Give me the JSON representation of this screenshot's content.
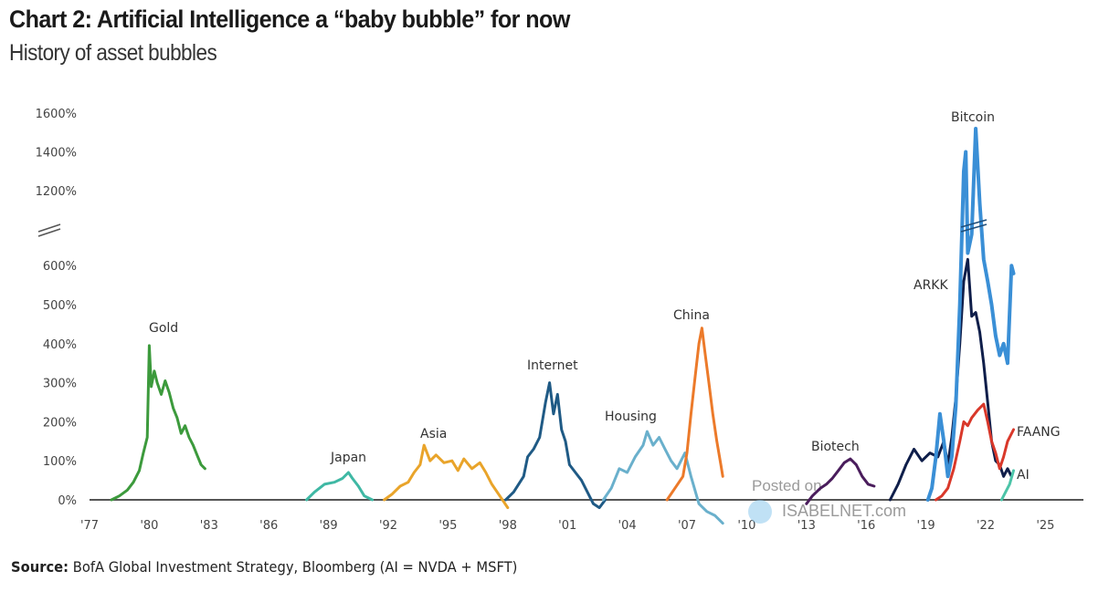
{
  "header": {
    "title": "Chart 2: Artificial Intelligence a “baby bubble” for now",
    "subtitle": "History of asset bubbles"
  },
  "footer": {
    "source_label": "Source:",
    "source_text": "BofA Global Investment Strategy, Bloomberg (AI = NVDA + MSFT)"
  },
  "watermark": {
    "line1": "Posted on",
    "line2": "ISABELNET.com"
  },
  "chart_data": {
    "type": "line",
    "title": "Chart 2: Artificial Intelligence a “baby bubble” for now",
    "subtitle": "History of asset bubbles",
    "xlabel": "",
    "ylabel": "",
    "xlim": [
      1977,
      2027
    ],
    "ylim": [
      0,
      1600
    ],
    "y_axis_break": [
      600,
      1200
    ],
    "grid": false,
    "legend": "none (series labelled inline)",
    "x_ticks": [
      "'77",
      "'80",
      "'83",
      "'86",
      "'89",
      "'92",
      "'95",
      "'98",
      "'01",
      "'04",
      "'07",
      "'10",
      "'13",
      "'16",
      "'19",
      "'22",
      "'25"
    ],
    "x_tick_values": [
      1977,
      1980,
      1983,
      1986,
      1989,
      1992,
      1995,
      1998,
      2001,
      2004,
      2007,
      2010,
      2013,
      2016,
      2019,
      2022,
      2025
    ],
    "y_ticks": [
      "0%",
      "100%",
      "200%",
      "300%",
      "400%",
      "500%",
      "600%",
      "1200%",
      "1400%",
      "1600%"
    ],
    "y_tick_values": [
      0,
      100,
      200,
      300,
      400,
      500,
      600,
      1200,
      1400,
      1600
    ],
    "series": [
      {
        "name": "Gold",
        "label": "Gold",
        "color": "#3c9a3c",
        "points": [
          [
            1978.1,
            0
          ],
          [
            1978.5,
            10
          ],
          [
            1978.9,
            25
          ],
          [
            1979.2,
            45
          ],
          [
            1979.5,
            75
          ],
          [
            1979.7,
            120
          ],
          [
            1979.9,
            160
          ],
          [
            1980.0,
            395
          ],
          [
            1980.1,
            290
          ],
          [
            1980.25,
            330
          ],
          [
            1980.4,
            300
          ],
          [
            1980.6,
            270
          ],
          [
            1980.8,
            305
          ],
          [
            1981.0,
            275
          ],
          [
            1981.2,
            235
          ],
          [
            1981.4,
            210
          ],
          [
            1981.6,
            170
          ],
          [
            1981.8,
            190
          ],
          [
            1982.0,
            160
          ],
          [
            1982.2,
            140
          ],
          [
            1982.4,
            115
          ],
          [
            1982.6,
            90
          ],
          [
            1982.8,
            80
          ]
        ]
      },
      {
        "name": "Japan",
        "label": "Japan",
        "color": "#3fb8a4",
        "points": [
          [
            1987.9,
            0
          ],
          [
            1988.3,
            20
          ],
          [
            1988.8,
            40
          ],
          [
            1989.3,
            45
          ],
          [
            1989.7,
            55
          ],
          [
            1990.0,
            70
          ],
          [
            1990.2,
            55
          ],
          [
            1990.5,
            35
          ],
          [
            1990.8,
            10
          ],
          [
            1991.0,
            5
          ],
          [
            1991.2,
            0
          ]
        ]
      },
      {
        "name": "Asia",
        "label": "Asia",
        "color": "#e9a42a",
        "points": [
          [
            1991.8,
            0
          ],
          [
            1992.2,
            15
          ],
          [
            1992.6,
            35
          ],
          [
            1993.0,
            45
          ],
          [
            1993.3,
            70
          ],
          [
            1993.6,
            90
          ],
          [
            1993.8,
            140
          ],
          [
            1994.1,
            100
          ],
          [
            1994.4,
            115
          ],
          [
            1994.8,
            95
          ],
          [
            1995.2,
            100
          ],
          [
            1995.5,
            75
          ],
          [
            1995.8,
            105
          ],
          [
            1996.2,
            80
          ],
          [
            1996.6,
            95
          ],
          [
            1996.9,
            70
          ],
          [
            1997.2,
            40
          ],
          [
            1997.6,
            10
          ],
          [
            1998.0,
            -20
          ]
        ]
      },
      {
        "name": "Internet",
        "label": "Internet",
        "color": "#1f5a85",
        "points": [
          [
            1997.9,
            0
          ],
          [
            1998.3,
            20
          ],
          [
            1998.8,
            60
          ],
          [
            1999.0,
            110
          ],
          [
            1999.3,
            130
          ],
          [
            1999.6,
            160
          ],
          [
            1999.9,
            250
          ],
          [
            2000.1,
            300
          ],
          [
            2000.3,
            220
          ],
          [
            2000.5,
            270
          ],
          [
            2000.7,
            180
          ],
          [
            2000.9,
            150
          ],
          [
            2001.1,
            90
          ],
          [
            2001.4,
            70
          ],
          [
            2001.7,
            50
          ],
          [
            2002.0,
            20
          ],
          [
            2002.3,
            -10
          ],
          [
            2002.6,
            -20
          ],
          [
            2002.9,
            0
          ]
        ]
      },
      {
        "name": "Housing",
        "label": "Housing",
        "color": "#6ab0cc",
        "points": [
          [
            2002.8,
            0
          ],
          [
            2003.2,
            30
          ],
          [
            2003.6,
            80
          ],
          [
            2004.0,
            70
          ],
          [
            2004.4,
            110
          ],
          [
            2004.8,
            140
          ],
          [
            2005.0,
            175
          ],
          [
            2005.3,
            140
          ],
          [
            2005.6,
            160
          ],
          [
            2005.9,
            130
          ],
          [
            2006.2,
            100
          ],
          [
            2006.5,
            80
          ],
          [
            2006.9,
            120
          ],
          [
            2007.2,
            60
          ],
          [
            2007.6,
            -10
          ],
          [
            2008.0,
            -30
          ],
          [
            2008.4,
            -40
          ],
          [
            2008.8,
            -60
          ]
        ]
      },
      {
        "name": "China",
        "label": "China",
        "color": "#ec7a2a",
        "points": [
          [
            2006.0,
            0
          ],
          [
            2006.4,
            30
          ],
          [
            2006.8,
            60
          ],
          [
            2007.0,
            120
          ],
          [
            2007.2,
            220
          ],
          [
            2007.4,
            310
          ],
          [
            2007.6,
            400
          ],
          [
            2007.75,
            440
          ],
          [
            2007.9,
            380
          ],
          [
            2008.1,
            300
          ],
          [
            2008.3,
            220
          ],
          [
            2008.5,
            150
          ],
          [
            2008.7,
            90
          ],
          [
            2008.8,
            60
          ]
        ]
      },
      {
        "name": "Biotech",
        "label": "Biotech",
        "color": "#4a1d5c",
        "points": [
          [
            2013.0,
            -10
          ],
          [
            2013.3,
            10
          ],
          [
            2013.7,
            30
          ],
          [
            2014.0,
            40
          ],
          [
            2014.3,
            55
          ],
          [
            2014.6,
            75
          ],
          [
            2014.9,
            95
          ],
          [
            2015.2,
            105
          ],
          [
            2015.5,
            90
          ],
          [
            2015.8,
            60
          ],
          [
            2016.1,
            40
          ],
          [
            2016.4,
            35
          ]
        ]
      },
      {
        "name": "ARKK",
        "label": "ARKK",
        "color": "#0f1e4a",
        "points": [
          [
            2017.2,
            0
          ],
          [
            2017.6,
            40
          ],
          [
            2018.0,
            90
          ],
          [
            2018.4,
            130
          ],
          [
            2018.8,
            100
          ],
          [
            2019.2,
            120
          ],
          [
            2019.6,
            110
          ],
          [
            2019.9,
            150
          ],
          [
            2020.1,
            90
          ],
          [
            2020.3,
            160
          ],
          [
            2020.5,
            260
          ],
          [
            2020.7,
            400
          ],
          [
            2020.9,
            560
          ],
          [
            2021.1,
            650
          ],
          [
            2021.3,
            470
          ],
          [
            2021.5,
            480
          ],
          [
            2021.7,
            430
          ],
          [
            2021.9,
            350
          ],
          [
            2022.1,
            250
          ],
          [
            2022.3,
            150
          ],
          [
            2022.5,
            100
          ],
          [
            2022.7,
            90
          ],
          [
            2022.9,
            60
          ],
          [
            2023.1,
            80
          ],
          [
            2023.3,
            60
          ]
        ]
      },
      {
        "name": "Bitcoin",
        "label": "Bitcoin",
        "color": "#3a8fd6",
        "points": [
          [
            2019.1,
            0
          ],
          [
            2019.3,
            30
          ],
          [
            2019.5,
            110
          ],
          [
            2019.7,
            220
          ],
          [
            2019.9,
            150
          ],
          [
            2020.1,
            60
          ],
          [
            2020.3,
            110
          ],
          [
            2020.5,
            240
          ],
          [
            2020.7,
            500
          ],
          [
            2020.9,
            1300
          ],
          [
            2021.0,
            1400
          ],
          [
            2021.1,
            700
          ],
          [
            2021.3,
            850
          ],
          [
            2021.5,
            1520
          ],
          [
            2021.7,
            1100
          ],
          [
            2021.9,
            650
          ],
          [
            2022.1,
            560
          ],
          [
            2022.3,
            500
          ],
          [
            2022.5,
            420
          ],
          [
            2022.7,
            370
          ],
          [
            2022.9,
            400
          ],
          [
            2023.1,
            350
          ],
          [
            2023.3,
            600
          ],
          [
            2023.4,
            580
          ]
        ]
      },
      {
        "name": "FAANG",
        "label": "FAANG",
        "color": "#d9382a",
        "points": [
          [
            2019.5,
            0
          ],
          [
            2019.8,
            10
          ],
          [
            2020.1,
            30
          ],
          [
            2020.4,
            80
          ],
          [
            2020.7,
            150
          ],
          [
            2020.9,
            200
          ],
          [
            2021.1,
            190
          ],
          [
            2021.3,
            210
          ],
          [
            2021.6,
            230
          ],
          [
            2021.9,
            245
          ],
          [
            2022.1,
            200
          ],
          [
            2022.3,
            150
          ],
          [
            2022.5,
            120
          ],
          [
            2022.7,
            80
          ],
          [
            2022.9,
            110
          ],
          [
            2023.1,
            150
          ],
          [
            2023.4,
            180
          ]
        ]
      },
      {
        "name": "AI",
        "label": "AI",
        "color": "#4cc4a8",
        "points": [
          [
            2022.8,
            0
          ],
          [
            2023.0,
            20
          ],
          [
            2023.2,
            40
          ],
          [
            2023.4,
            75
          ]
        ]
      }
    ]
  }
}
